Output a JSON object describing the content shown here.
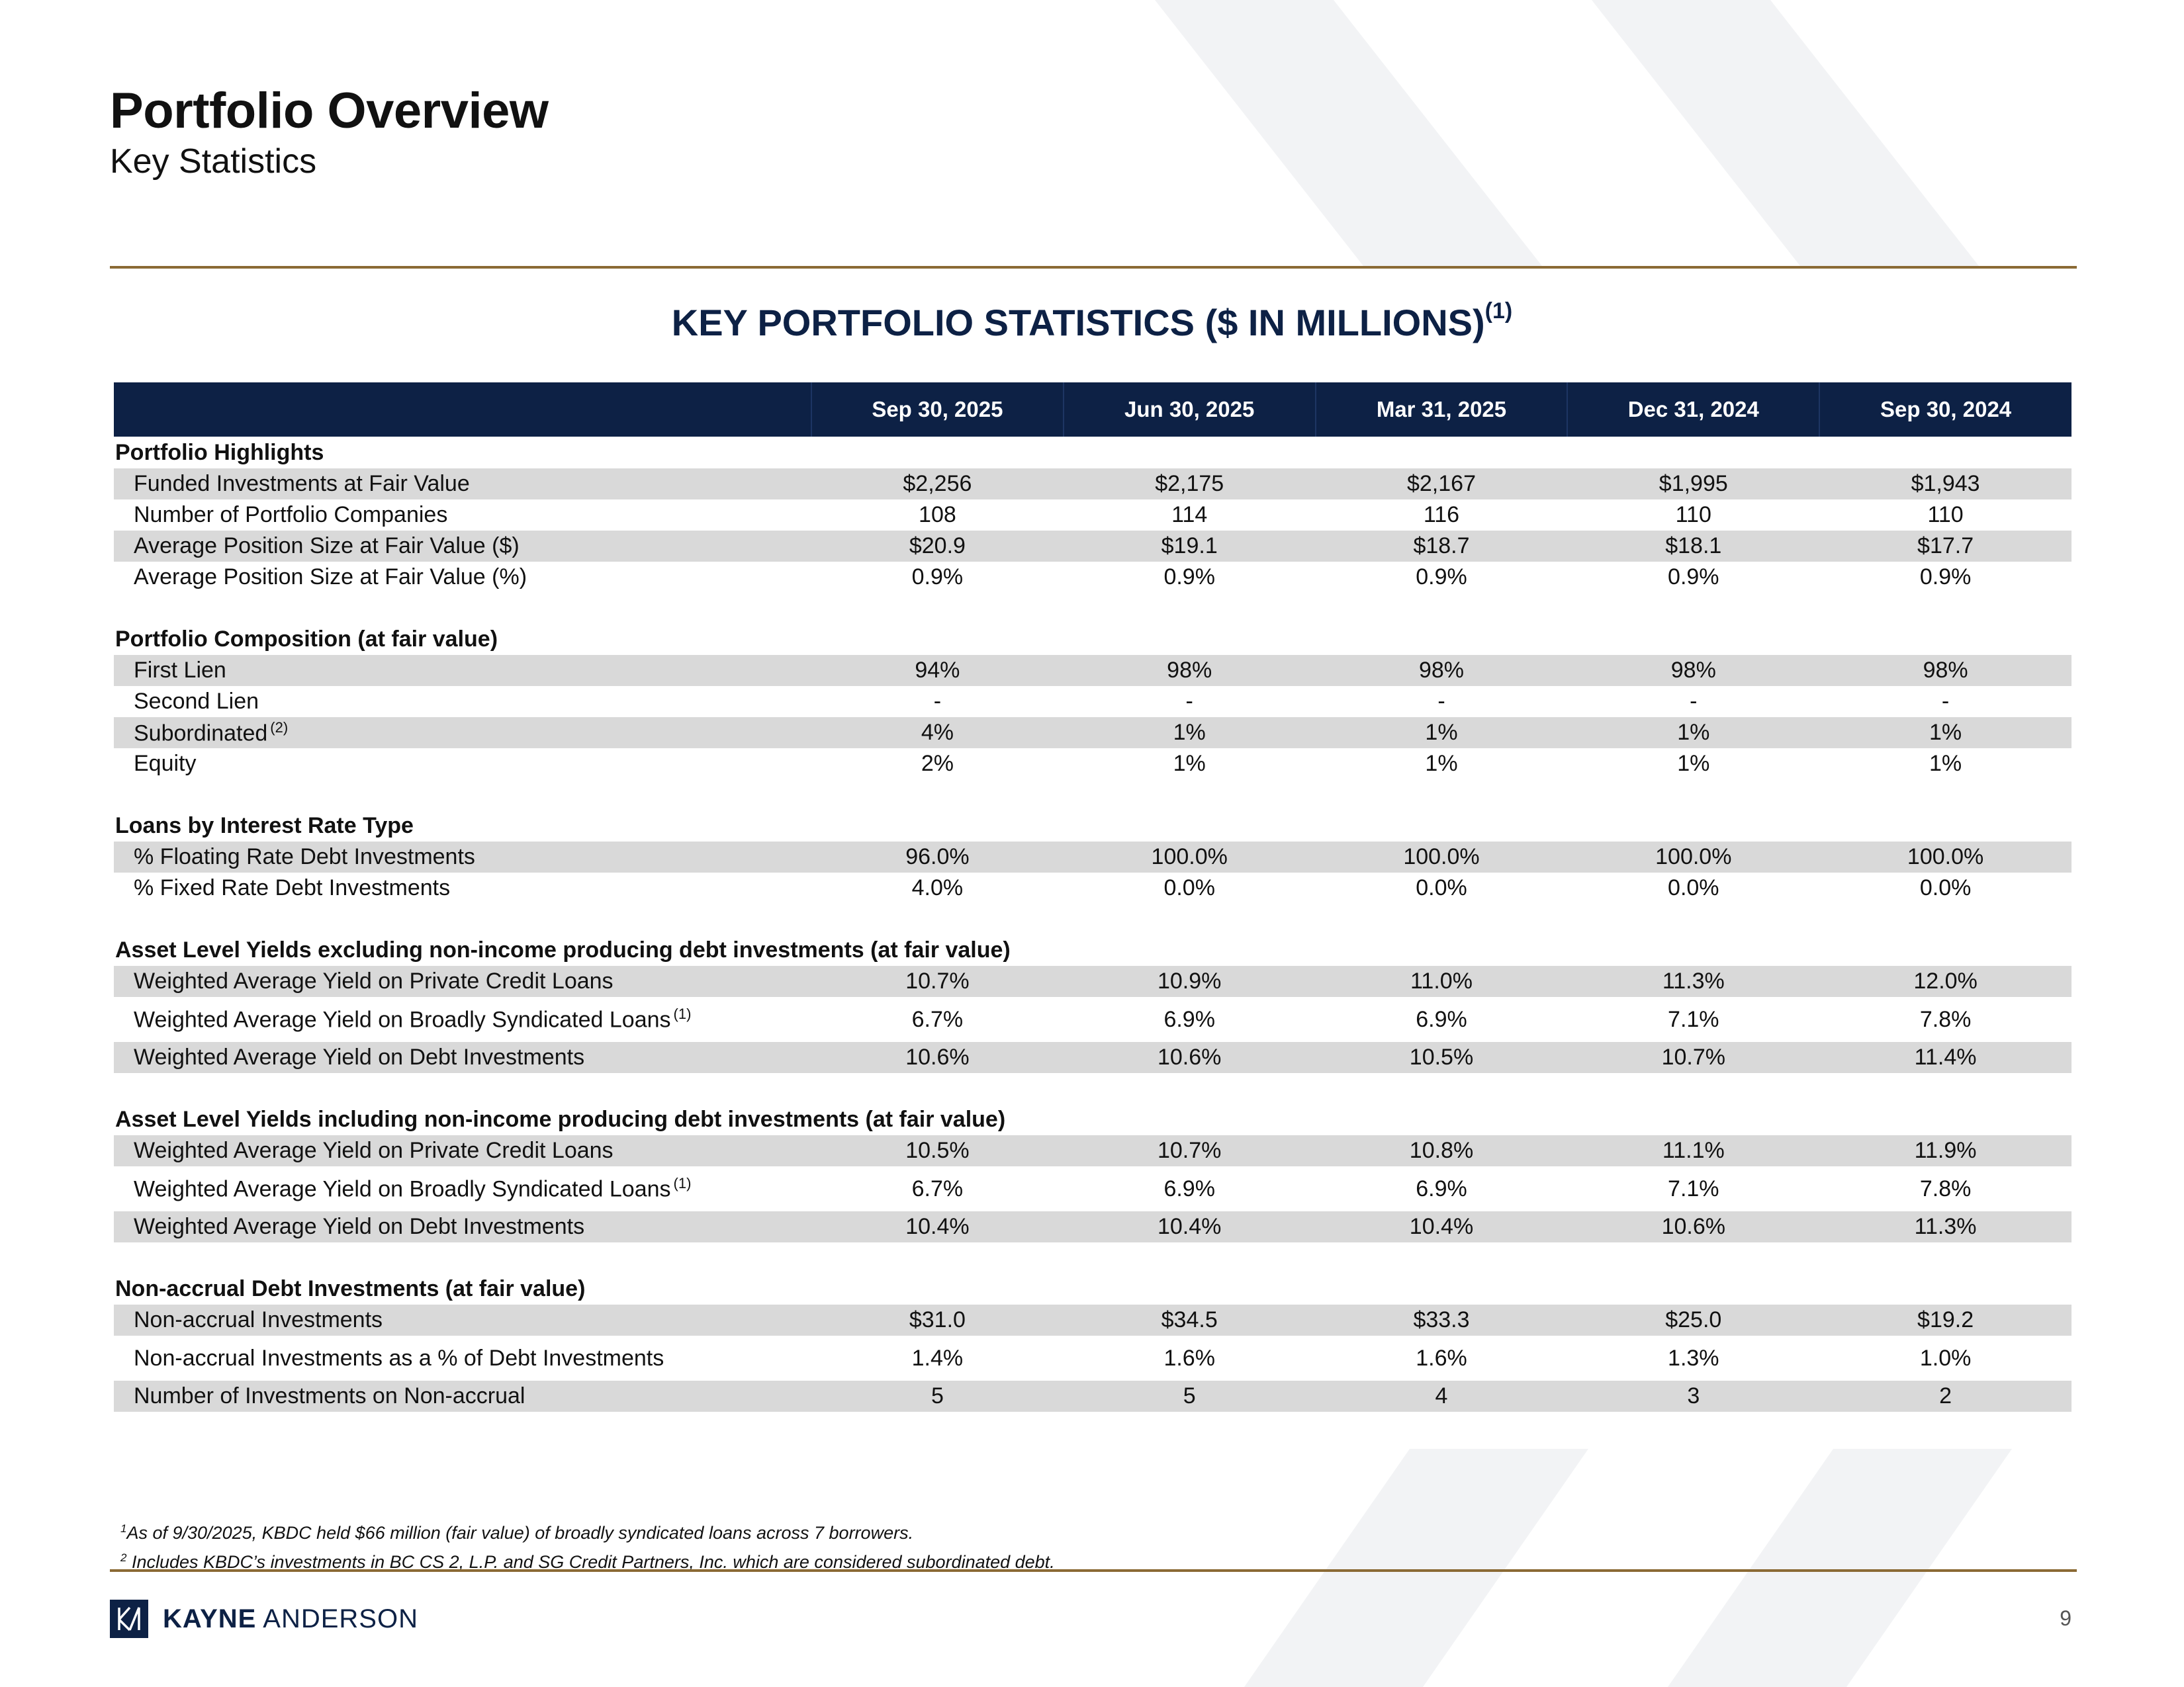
{
  "header": {
    "title": "Portfolio Overview",
    "subtitle": "Key Statistics"
  },
  "section_title": "KEY PORTFOLIO STATISTICS ($ IN MILLIONS)",
  "section_title_note": "(1)",
  "columns": [
    "Sep 30, 2025",
    "Jun 30, 2025",
    "Mar 31, 2025",
    "Dec 31, 2024",
    "Sep 30, 2024"
  ],
  "sections": {
    "highlights": {
      "title": "Portfolio Highlights",
      "rows": [
        {
          "label": "Funded Investments at Fair Value",
          "values": [
            "$2,256",
            "$2,175",
            "$2,167",
            "$1,995",
            "$1,943"
          ]
        },
        {
          "label": "Number of Portfolio Companies",
          "values": [
            "108",
            "114",
            "116",
            "110",
            "110"
          ]
        },
        {
          "label": "Average Position Size at Fair Value ($)",
          "values": [
            "$20.9",
            "$19.1",
            "$18.7",
            "$18.1",
            "$17.7"
          ]
        },
        {
          "label": "Average Position Size at Fair Value (%)",
          "values": [
            "0.9%",
            "0.9%",
            "0.9%",
            "0.9%",
            "0.9%"
          ]
        }
      ]
    },
    "composition": {
      "title": "Portfolio Composition (at fair value)",
      "rows": [
        {
          "label": "First Lien",
          "values": [
            "94%",
            "98%",
            "98%",
            "98%",
            "98%"
          ]
        },
        {
          "label": "Second Lien",
          "values": [
            "-",
            "-",
            "-",
            "-",
            "-"
          ]
        },
        {
          "label": "Subordinated",
          "note": "(2)",
          "values": [
            "4%",
            "1%",
            "1%",
            "1%",
            "1%"
          ]
        },
        {
          "label": "Equity",
          "values": [
            "2%",
            "1%",
            "1%",
            "1%",
            "1%"
          ]
        }
      ]
    },
    "rate_type": {
      "title": "Loans by Interest Rate Type",
      "rows": [
        {
          "label": "% Floating Rate Debt Investments",
          "values": [
            "96.0%",
            "100.0%",
            "100.0%",
            "100.0%",
            "100.0%"
          ]
        },
        {
          "label": "% Fixed Rate Debt Investments",
          "values": [
            "4.0%",
            "0.0%",
            "0.0%",
            "0.0%",
            "0.0%"
          ]
        }
      ]
    },
    "yields_excl": {
      "title": "Asset Level Yields excluding non-income producing debt investments (at fair value)",
      "rows": [
        {
          "label": "Weighted Average Yield on Private Credit Loans",
          "values": [
            "10.7%",
            "10.9%",
            "11.0%",
            "11.3%",
            "12.0%"
          ]
        },
        {
          "label": "Weighted Average Yield on Broadly Syndicated Loans",
          "note": "(1)",
          "values": [
            "6.7%",
            "6.9%",
            "6.9%",
            "7.1%",
            "7.8%"
          ]
        },
        {
          "label": "Weighted Average Yield on Debt Investments",
          "values": [
            "10.6%",
            "10.6%",
            "10.5%",
            "10.7%",
            "11.4%"
          ]
        }
      ]
    },
    "yields_incl": {
      "title": "Asset Level Yields including non-income producing debt investments (at fair value)",
      "rows": [
        {
          "label": "Weighted Average Yield on Private Credit Loans",
          "values": [
            "10.5%",
            "10.7%",
            "10.8%",
            "11.1%",
            "11.9%"
          ]
        },
        {
          "label": "Weighted Average Yield on Broadly Syndicated Loans",
          "note": "(1)",
          "values": [
            "6.7%",
            "6.9%",
            "6.9%",
            "7.1%",
            "7.8%"
          ]
        },
        {
          "label": "Weighted Average Yield on Debt Investments",
          "values": [
            "10.4%",
            "10.4%",
            "10.4%",
            "10.6%",
            "11.3%"
          ]
        }
      ]
    },
    "nonaccrual": {
      "title": "Non-accrual Debt Investments (at fair value)",
      "rows": [
        {
          "label": "Non-accrual Investments",
          "values": [
            "$31.0",
            "$34.5",
            "$33.3",
            "$25.0",
            "$19.2"
          ]
        },
        {
          "label": "Non-accrual Investments as a % of Debt Investments",
          "values": [
            "1.4%",
            "1.6%",
            "1.6%",
            "1.3%",
            "1.0%"
          ]
        },
        {
          "label": "Number of Investments on Non-accrual",
          "values": [
            "5",
            "5",
            "4",
            "3",
            "2"
          ]
        }
      ]
    }
  },
  "footnotes": [
    {
      "mark": "1",
      "text": "As of 9/30/2025, KBDC held $66 million (fair value) of broadly syndicated loans across 7 borrowers."
    },
    {
      "mark": "2",
      "text": " Includes KBDC’s investments in BC CS 2, L.P. and  SG Credit Partners, Inc. which are considered subordinated debt."
    }
  ],
  "footer": {
    "logo_bold": "KAYNE",
    "logo_rest": " ANDERSON",
    "page_number": "9"
  },
  "colors": {
    "navy": "#0d2145",
    "gold_rule": "#8b6a35",
    "row_shade": "#d9d9d9",
    "background_chevron": "#f2f3f5"
  }
}
